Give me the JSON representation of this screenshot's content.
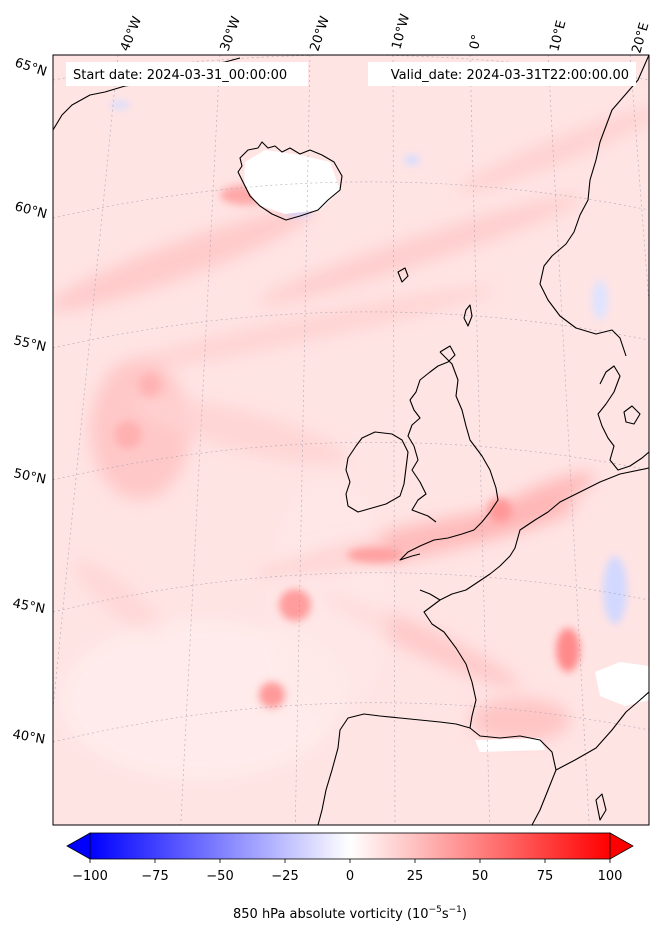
{
  "header": {
    "start_date": "Start date: 2024-03-31_00:00:00",
    "valid_date": "Valid_date: 2024-03-31T22:00:00.00"
  },
  "map": {
    "longitude_labels": [
      "40°W",
      "30°W",
      "20°W",
      "10°W",
      "0°",
      "10°E",
      "20°E"
    ],
    "latitude_labels": [
      "65°N",
      "60°N",
      "55°N",
      "50°N",
      "45°N",
      "40°N"
    ],
    "colors": {
      "background_field": "#ffe6e6",
      "coastline": "#000000",
      "gridline": "#9a9aaa",
      "land_gap": "#ffffff"
    }
  },
  "colorbar": {
    "ticks": [
      "−100",
      "−75",
      "−50",
      "−25",
      "0",
      "25",
      "50",
      "75",
      "100"
    ],
    "min": -100,
    "max": 100,
    "label_prefix": "850 hPa absolute vorticity (10",
    "label_exp1": "−5",
    "label_mid": "s",
    "label_exp2": "−1",
    "label_suffix": ")",
    "colors": {
      "negative": "#0000ff",
      "zero": "#ffffff",
      "positive": "#ff0000"
    }
  }
}
